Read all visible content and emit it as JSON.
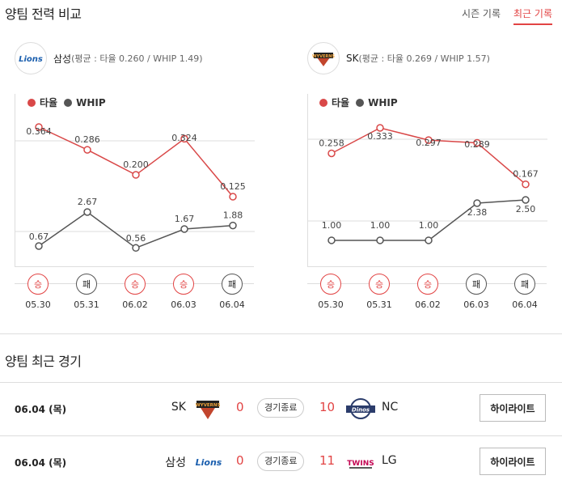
{
  "header": {
    "title": "양팀 전력 비교",
    "tabs": [
      {
        "label": "시즌 기록",
        "active": false
      },
      {
        "label": "최근 기록",
        "active": true
      }
    ]
  },
  "colors": {
    "accent": "#e24444",
    "avg_line": "#d94848",
    "whip_line": "#555555"
  },
  "teams": [
    {
      "name": "삼성",
      "stat_text": "(평균 : 타율 0.260 / WHIP 1.49)",
      "logo_icon": "lions-logo-icon",
      "logo_text": "Lions",
      "legend": {
        "avg": "타율",
        "whip": "WHIP"
      },
      "results": [
        {
          "label": "승",
          "win": true
        },
        {
          "label": "패",
          "win": false
        },
        {
          "label": "승",
          "win": true
        },
        {
          "label": "승",
          "win": true
        },
        {
          "label": "패",
          "win": false
        }
      ],
      "dates": [
        "05.30",
        "05.31",
        "06.02",
        "06.03",
        "06.04"
      ]
    },
    {
      "name": "SK",
      "stat_text": "(평균 : 타율 0.269 / WHIP 1.57)",
      "logo_icon": "wyverns-logo-icon",
      "logo_text": "WYVERNS",
      "legend": {
        "avg": "타율",
        "whip": "WHIP"
      },
      "results": [
        {
          "label": "승",
          "win": true
        },
        {
          "label": "승",
          "win": true
        },
        {
          "label": "승",
          "win": true
        },
        {
          "label": "패",
          "win": false
        },
        {
          "label": "패",
          "win": false
        }
      ],
      "dates": [
        "05.30",
        "05.31",
        "06.02",
        "06.03",
        "06.04"
      ]
    }
  ],
  "chart_data": [
    {
      "type": "line",
      "team": "삼성",
      "categories": [
        "05.30",
        "05.31",
        "06.02",
        "06.03",
        "06.04"
      ],
      "series": [
        {
          "name": "타율",
          "values": [
            0.364,
            0.286,
            0.2,
            0.324,
            0.125
          ],
          "labels": [
            "0.364",
            "0.286",
            "0.200",
            "0.324",
            "0.125"
          ]
        },
        {
          "name": "WHIP",
          "values": [
            0.67,
            2.67,
            0.56,
            1.67,
            1.88
          ],
          "labels": [
            "0.67",
            "2.67",
            "0.56",
            "1.67",
            "1.88"
          ]
        }
      ]
    },
    {
      "type": "line",
      "team": "SK",
      "categories": [
        "05.30",
        "05.31",
        "06.02",
        "06.03",
        "06.04"
      ],
      "series": [
        {
          "name": "타율",
          "values": [
            0.258,
            0.333,
            0.297,
            0.289,
            0.167
          ],
          "labels": [
            "0.258",
            "0.333",
            "0.297",
            "0.289",
            "0.167"
          ]
        },
        {
          "name": "WHIP",
          "values": [
            1.0,
            1.0,
            1.0,
            2.38,
            2.5
          ],
          "labels": [
            "1.00",
            "1.00",
            "1.00",
            "2.38",
            "2.50"
          ]
        }
      ]
    }
  ],
  "recent": {
    "title": "양팀 최근 경기",
    "games": [
      {
        "date": "06.04 (목)",
        "left_team": "SK",
        "left_logo_text": "WYVERNS",
        "left_score": "0",
        "status": "경기종료",
        "right_score": "10",
        "right_logo_text": "Dinos",
        "right_team": "NC",
        "highlight": "하이라이트"
      },
      {
        "date": "06.04 (목)",
        "left_team": "삼성",
        "left_logo_text": "Lions",
        "left_score": "0",
        "status": "경기종료",
        "right_score": "11",
        "right_logo_text": "TWINS",
        "right_team": "LG",
        "highlight": "하이라이트"
      }
    ]
  }
}
